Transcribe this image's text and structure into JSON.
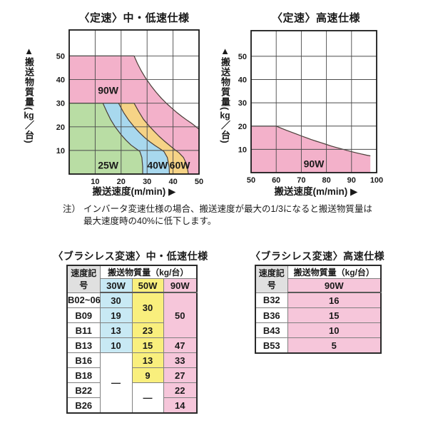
{
  "colors": {
    "chart_pink": "#f3b1ca",
    "chart_yellow": "#f6d386",
    "chart_blue": "#a8d8ee",
    "chart_green": "#b9dda4",
    "table_blue": "#c8e9f4",
    "table_yellow": "#f9ef7d",
    "table_pink": "#f6c6da",
    "header_gray": "#e0e0e0",
    "curve_stroke": "#4a3e38"
  },
  "axes_shared": {
    "y_arrow": "▲",
    "y_head": "搬送物質量(",
    "y_unit": "kg",
    "y_tail": "／台)",
    "x_arrow": " ▶"
  },
  "note": {
    "prefix": "注）",
    "text": "インバータ変速仕様の場合、搬送速度が最大の1/3になると搬送物質量は\n最大速度時の40%に低下します。"
  },
  "chart_data": [
    {
      "type": "area",
      "title": "〈定速〉中・低速仕様",
      "xlabel": "搬送速度(m/min)",
      "ylabel": "搬送物質量(kg/台)",
      "xlim": [
        0,
        50
      ],
      "ylim": [
        0,
        61
      ],
      "xticks": [
        10,
        20,
        30,
        40,
        50
      ],
      "yticks": [
        10,
        20,
        30,
        40,
        50
      ],
      "grid": true,
      "legend_position": "inside-labels",
      "series": [
        {
          "name": "90W",
          "fill": "#f3b1ca",
          "label_pos": [
            15,
            35.5
          ],
          "boundary": [
            [
              0,
              50
            ],
            [
              25,
              50
            ],
            [
              26.3,
              46.8
            ],
            [
              27.8,
              43.6
            ],
            [
              29.5,
              40.5
            ],
            [
              31.5,
              37.4
            ],
            [
              33.5,
              34.6
            ],
            [
              35.5,
              32.1
            ],
            [
              37.5,
              29.9
            ],
            [
              39.5,
              27.9
            ],
            [
              41.5,
              26
            ],
            [
              43.5,
              24.3
            ],
            [
              45.5,
              22.7
            ],
            [
              47.5,
              21.2
            ],
            [
              50,
              19
            ]
          ]
        },
        {
          "name": "60W",
          "fill": "#f6d386",
          "label_pos": [
            42.6,
            3.8
          ],
          "boundary": [
            [
              0,
              30
            ],
            [
              25,
              30
            ],
            [
              26.8,
              26.4
            ],
            [
              28.6,
              23.2
            ],
            [
              30.6,
              20.6
            ],
            [
              32.6,
              18.2
            ],
            [
              34.6,
              16
            ],
            [
              36.6,
              14
            ],
            [
              38.6,
              12.2
            ],
            [
              40.6,
              10.4
            ],
            [
              42.3,
              9
            ],
            [
              44,
              7
            ],
            [
              45.3,
              4
            ],
            [
              45.9,
              0
            ]
          ]
        },
        {
          "name": "40W",
          "fill": "#a8d8ee",
          "label_pos": [
            34,
            3.8
          ],
          "boundary": [
            [
              0,
              30
            ],
            [
              19,
              30
            ],
            [
              21,
              26
            ],
            [
              23,
              22.7
            ],
            [
              25,
              20
            ],
            [
              27,
              17.6
            ],
            [
              29,
              15.5
            ],
            [
              31,
              13.7
            ],
            [
              33,
              12.1
            ],
            [
              35,
              10.7
            ],
            [
              36.5,
              9.5
            ],
            [
              37.8,
              7
            ],
            [
              38.5,
              3
            ],
            [
              38.6,
              0
            ]
          ]
        },
        {
          "name": "25W",
          "fill": "#b9dda4",
          "label_pos": [
            15,
            3.8
          ],
          "boundary": [
            [
              0,
              30
            ],
            [
              13,
              30
            ],
            [
              14.5,
              26.3
            ],
            [
              16,
              23
            ],
            [
              17.8,
              19.8
            ],
            [
              19.8,
              16.9
            ],
            [
              21.8,
              14.4
            ],
            [
              23.8,
              12.3
            ],
            [
              25.8,
              10.7
            ],
            [
              27.2,
              9.6
            ],
            [
              28,
              7
            ],
            [
              28.3,
              3
            ],
            [
              28.3,
              0
            ]
          ]
        }
      ]
    },
    {
      "type": "area",
      "title": "〈定速〉高速仕様",
      "xlabel": "搬送速度(m/min)",
      "ylabel": "搬送物質量(kg/台)",
      "xlim": [
        50,
        100
      ],
      "ylim": [
        0,
        61
      ],
      "xticks": [
        50,
        60,
        70,
        80,
        90,
        100
      ],
      "yticks": [
        10,
        20,
        30,
        40,
        50
      ],
      "grid": true,
      "legend_position": "inside-labels",
      "series": [
        {
          "name": "90W",
          "fill": "#f3b1ca",
          "label_pos": [
            75,
            3.8
          ],
          "boundary": [
            [
              50,
              20
            ],
            [
              60,
              20
            ],
            [
              62,
              19.1
            ],
            [
              64,
              18.2
            ],
            [
              66,
              17.4
            ],
            [
              68,
              16.6
            ],
            [
              70,
              15.8
            ],
            [
              72,
              15
            ],
            [
              74,
              14.2
            ],
            [
              76,
              13.5
            ],
            [
              78,
              12.8
            ],
            [
              80,
              12.1
            ],
            [
              82,
              11.4
            ],
            [
              84,
              10.8
            ],
            [
              86,
              10.2
            ],
            [
              88,
              9.6
            ],
            [
              90,
              9
            ],
            [
              92,
              8.5
            ],
            [
              94,
              8
            ],
            [
              96,
              7.5
            ],
            [
              97.5,
              7.2
            ]
          ]
        }
      ]
    }
  ],
  "tables": {
    "low": {
      "title": "〈ブラシレス変速〉中・低速仕様",
      "header": {
        "speed_col": "速度記号",
        "mass_col": "搬送物質量（kg/台）",
        "watts": [
          "30W",
          "50W",
          "90W"
        ]
      },
      "rows": [
        {
          "label": "B02~06",
          "w30": "30",
          "w50": "30",
          "w90": "50"
        },
        {
          "label": "B09",
          "w30": "19"
        },
        {
          "label": "B11",
          "w30": "13",
          "w50": "23"
        },
        {
          "label": "B13",
          "w30": "10",
          "w50": "15",
          "w90": "47"
        },
        {
          "label": "B16",
          "w30": "—",
          "w50": "13",
          "w90": "33"
        },
        {
          "label": "B18",
          "w50": "9",
          "w90": "27"
        },
        {
          "label": "B22",
          "w50": "—",
          "w90": "22"
        },
        {
          "label": "B26",
          "w90": "14"
        }
      ]
    },
    "high": {
      "title": "〈ブラシレス変速〉高速仕様",
      "header": {
        "speed_col": "速度記号",
        "mass_col": "搬送物質量（kg/台）",
        "watts": [
          "90W"
        ]
      },
      "rows": [
        {
          "label": "B32",
          "w90": "16"
        },
        {
          "label": "B36",
          "w90": "15"
        },
        {
          "label": "B43",
          "w90": "10"
        },
        {
          "label": "B53",
          "w90": "5"
        }
      ]
    }
  }
}
